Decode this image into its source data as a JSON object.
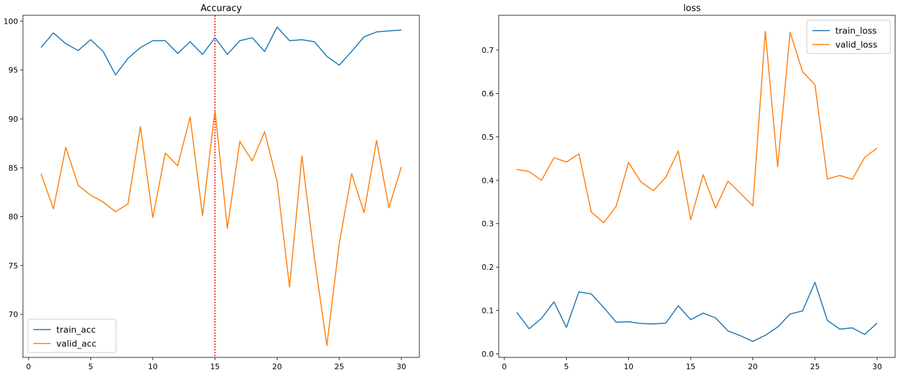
{
  "chart_data": [
    {
      "type": "line",
      "title": "Accuracy",
      "xlabel": "",
      "ylabel": "",
      "x": [
        1,
        2,
        3,
        4,
        5,
        6,
        7,
        8,
        9,
        10,
        11,
        12,
        13,
        14,
        15,
        16,
        17,
        18,
        19,
        20,
        21,
        22,
        23,
        24,
        25,
        26,
        27,
        28,
        29,
        30
      ],
      "xlim": [
        -0.45,
        31.45
      ],
      "ylim": [
        65.6,
        100.6
      ],
      "xticks": [
        0,
        5,
        10,
        15,
        20,
        25,
        30
      ],
      "yticks": [
        70,
        75,
        80,
        85,
        90,
        95,
        100
      ],
      "grid": false,
      "legend_position": "lower-left",
      "vline": {
        "x": 15,
        "color": "#ff0000",
        "style": "dotted"
      },
      "series": [
        {
          "name": "train_acc",
          "color": "#1f77b4",
          "values": [
            97.3,
            98.8,
            97.7,
            97.0,
            98.1,
            96.9,
            94.5,
            96.2,
            97.3,
            98.0,
            98.0,
            96.7,
            97.9,
            96.6,
            98.3,
            96.6,
            98.0,
            98.3,
            96.9,
            99.4,
            98.0,
            98.1,
            97.9,
            96.4,
            95.5,
            96.9,
            98.4,
            98.9,
            99.0,
            99.1
          ]
        },
        {
          "name": "valid_acc",
          "color": "#ff7f0e",
          "values": [
            84.4,
            80.8,
            87.1,
            83.2,
            82.2,
            81.5,
            80.5,
            81.3,
            89.2,
            79.9,
            86.5,
            85.2,
            90.2,
            80.1,
            90.9,
            78.8,
            87.7,
            85.7,
            88.7,
            83.6,
            72.8,
            86.2,
            75.8,
            66.8,
            77.2,
            84.4,
            80.4,
            87.8,
            80.9,
            85.1
          ]
        }
      ]
    },
    {
      "type": "line",
      "title": "loss",
      "xlabel": "",
      "ylabel": "",
      "x": [
        1,
        2,
        3,
        4,
        5,
        6,
        7,
        8,
        9,
        10,
        11,
        12,
        13,
        14,
        15,
        16,
        17,
        18,
        19,
        20,
        21,
        22,
        23,
        24,
        25,
        26,
        27,
        28,
        29,
        30
      ],
      "xlim": [
        -0.45,
        31.45
      ],
      "ylim": [
        -0.008,
        0.78
      ],
      "xticks": [
        0,
        5,
        10,
        15,
        20,
        25,
        30
      ],
      "yticks": [
        0.0,
        0.1,
        0.2,
        0.3,
        0.4,
        0.5,
        0.6,
        0.7
      ],
      "ytick_labels": [
        "0.0",
        "0.1",
        "0.2",
        "0.3",
        "0.4",
        "0.5",
        "0.6",
        "0.7"
      ],
      "grid": false,
      "legend_position": "upper-right",
      "series": [
        {
          "name": "train_loss",
          "color": "#1f77b4",
          "values": [
            0.096,
            0.058,
            0.082,
            0.12,
            0.061,
            0.143,
            0.138,
            0.107,
            0.073,
            0.074,
            0.07,
            0.069,
            0.071,
            0.111,
            0.079,
            0.094,
            0.083,
            0.053,
            0.042,
            0.029,
            0.043,
            0.062,
            0.092,
            0.099,
            0.165,
            0.077,
            0.057,
            0.06,
            0.045,
            0.071
          ]
        },
        {
          "name": "valid_loss",
          "color": "#ff7f0e",
          "values": [
            0.425,
            0.42,
            0.4,
            0.452,
            0.442,
            0.461,
            0.327,
            0.302,
            0.34,
            0.441,
            0.396,
            0.376,
            0.407,
            0.468,
            0.309,
            0.413,
            0.336,
            0.398,
            0.37,
            0.341,
            0.743,
            0.431,
            0.741,
            0.65,
            0.62,
            0.403,
            0.411,
            0.402,
            0.453,
            0.474
          ]
        }
      ]
    }
  ]
}
